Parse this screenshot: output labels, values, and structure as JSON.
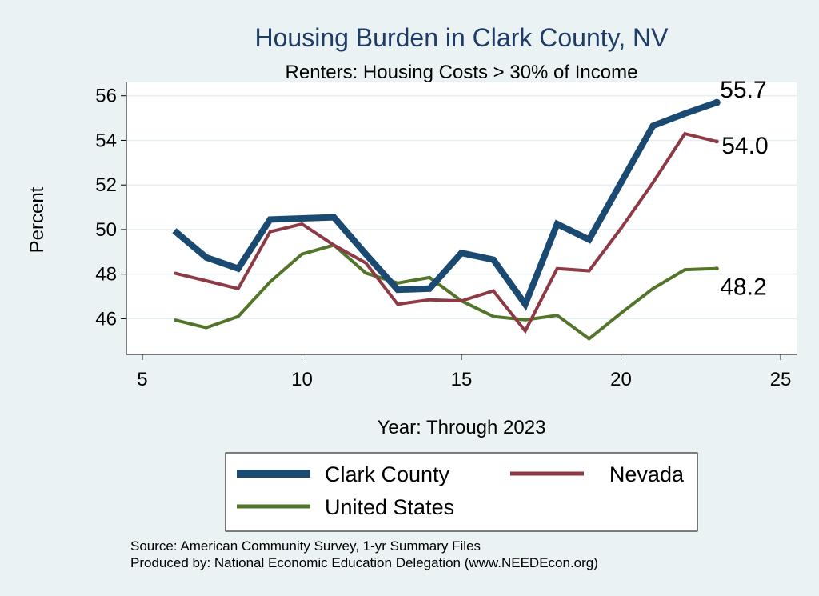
{
  "chart_data": {
    "type": "line",
    "title": "Housing Burden in Clark County, NV",
    "subtitle": "Renters: Housing Costs > 30% of Income",
    "xlabel": "Year: Through 2023",
    "ylabel": "Percent",
    "xlim": [
      4.5,
      25.5
    ],
    "ylim": [
      44.4,
      56.6
    ],
    "xticks": [
      5,
      10,
      15,
      20,
      25
    ],
    "yticks": [
      46,
      48,
      50,
      52,
      54,
      56
    ],
    "grid": true,
    "legend_position": "bottom",
    "x": [
      6,
      7,
      8,
      9,
      10,
      11,
      12,
      13,
      14,
      15,
      16,
      17,
      18,
      19,
      20,
      21,
      22,
      23
    ],
    "series": [
      {
        "name": "Clark County",
        "color": "#1a4a72",
        "width": 8,
        "values": [
          49.95,
          48.75,
          48.25,
          50.45,
          50.5,
          50.55,
          48.9,
          47.3,
          47.35,
          48.95,
          48.65,
          46.65,
          50.25,
          49.55,
          52.1,
          54.65,
          55.2,
          55.7
        ],
        "end_label": "55.7"
      },
      {
        "name": "Nevada",
        "color": "#8e3a46",
        "width": 4,
        "values": [
          48.05,
          47.7,
          47.35,
          49.9,
          50.25,
          49.3,
          48.5,
          46.65,
          46.85,
          46.8,
          47.25,
          45.45,
          48.25,
          48.15,
          50.05,
          52.1,
          54.3,
          53.95
        ],
        "end_label": "54.0"
      },
      {
        "name": "United States",
        "color": "#52752a",
        "width": 4,
        "values": [
          45.95,
          45.6,
          46.1,
          47.65,
          48.9,
          49.3,
          48.05,
          47.6,
          47.85,
          46.8,
          46.1,
          45.95,
          46.15,
          45.1,
          46.25,
          47.35,
          48.2,
          48.25
        ],
        "end_label": "48.2"
      }
    ],
    "notes": [
      "Source: American Community Survey, 1-yr Summary Files",
      "Produced by: National Economic Education Delegation (www.NEEDEcon.org)"
    ]
  }
}
